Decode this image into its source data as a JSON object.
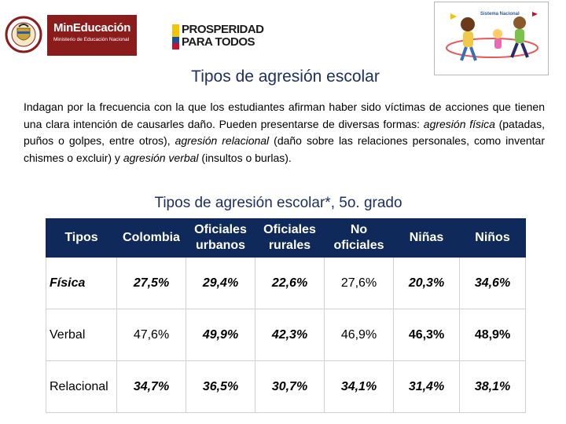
{
  "header": {
    "shield_text": "REPÚBLICA DE COLOMBIA",
    "mineducacion_brand": "MinEducación",
    "mineducacion_sub": "Ministerio de Educación Nacional",
    "prosperidad_line1": "PROSPERIDAD",
    "prosperidad_line2": "PARA TODOS",
    "kids_caption": "Sistema Nacional"
  },
  "colors": {
    "title": "#1f2f63",
    "table_header": "#0f2a5a",
    "mineducacion_red": "#8b1c1c"
  },
  "title": "Tipos de agresión escolar",
  "description": {
    "p1": "Indagan por la frecuencia con la que los estudiantes afirman haber sido víctimas de acciones que tienen una clara intención de causarles daño. Pueden presentarse de diversas formas: ",
    "term1": "agresión física",
    "p2": " (patadas, puños o golpes, entre otros), ",
    "term2": "agresión relacional",
    "p3": " (daño sobre las relaciones personales, como inventar chismes o excluir) y ",
    "term3": "agresión verbal",
    "p4": " (insultos o burlas)."
  },
  "table": {
    "title": "Tipos de agresión escolar*, 5o. grado",
    "headers": [
      {
        "line1": "Tipos",
        "line2": ""
      },
      {
        "line1": "Colombia",
        "line2": ""
      },
      {
        "line1": "Oficiales",
        "line2": "urbanos"
      },
      {
        "line1": "Oficiales",
        "line2": "rurales"
      },
      {
        "line1": "No",
        "line2": "oficiales"
      },
      {
        "line1": "Niñas",
        "line2": ""
      },
      {
        "line1": "Niños",
        "line2": ""
      }
    ],
    "rows": [
      {
        "label": "Física",
        "values": [
          "27,5%",
          "29,4%",
          "22,6%",
          "27,6%",
          "20,3%",
          "34,6%"
        ]
      },
      {
        "label": "Verbal",
        "values": [
          "47,6%",
          "49,9%",
          "42,3%",
          "46,9%",
          "46,3%",
          "48,9%"
        ]
      },
      {
        "label": "Relacional",
        "values": [
          "34,7%",
          "36,5%",
          "30,7%",
          "34,1%",
          "31,4%",
          "38,1%"
        ]
      }
    ]
  }
}
